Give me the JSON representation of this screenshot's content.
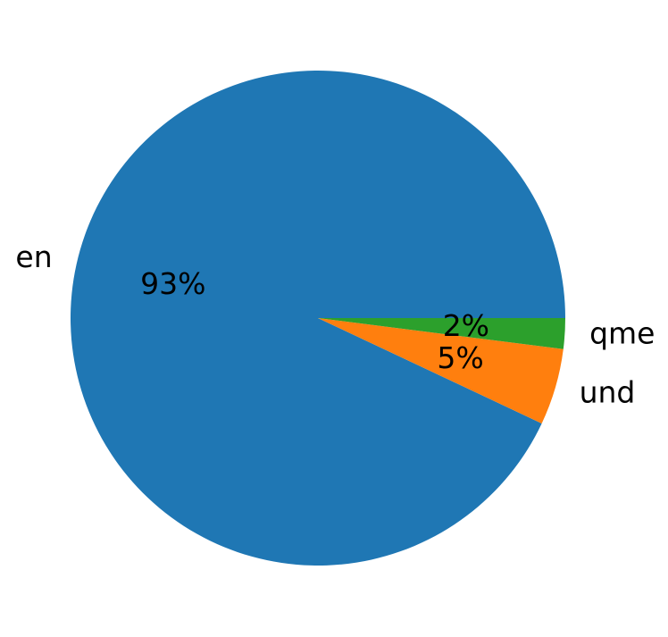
{
  "chart_data": {
    "type": "pie",
    "categories": [
      "en",
      "und",
      "qme"
    ],
    "values": [
      93,
      5,
      2
    ],
    "value_labels": [
      "93%",
      "5%",
      "2%"
    ],
    "colors": [
      "#1f77b4",
      "#ff7f0e",
      "#2ca02c"
    ]
  }
}
